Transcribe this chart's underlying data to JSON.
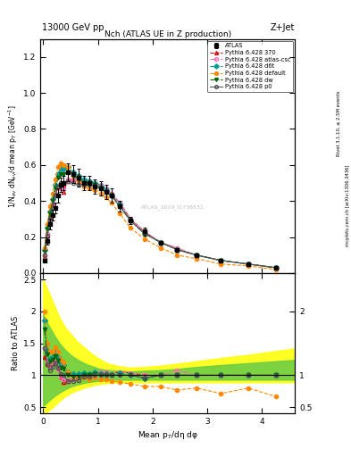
{
  "title_left": "13000 GeV pp",
  "title_right": "Z+Jet",
  "plot_title": "Nch (ATLAS UE in Z production)",
  "ylabel_main": "1/N$_{ev}$ dN$_{ev}$/d mean p$_T$ [GeV$^{-1}$]",
  "ylabel_ratio": "Ratio to ATLAS",
  "xlabel": "Mean p$_T$/dη dφ",
  "watermark": "ATLAS_2019_I1736531",
  "right_label": "Rivet 3.1.10, ≥ 2.5M events",
  "right_label2": "mcplots.cern.ch [arXiv:1306.3436]",
  "ylim_main": [
    0,
    1.3
  ],
  "ylim_ratio": [
    0.4,
    2.6
  ],
  "xlim": [
    -0.05,
    4.6
  ],
  "yticks_main": [
    0.0,
    0.2,
    0.4,
    0.6,
    0.8,
    1.0,
    1.2
  ],
  "yticks_ratio": [
    0.5,
    1.0,
    1.5,
    2.0,
    2.5
  ],
  "xticks": [
    0,
    1,
    2,
    3,
    4
  ],
  "x_atlas": [
    0.025,
    0.075,
    0.125,
    0.175,
    0.225,
    0.275,
    0.325,
    0.375,
    0.45,
    0.55,
    0.65,
    0.75,
    0.85,
    0.95,
    1.05,
    1.15,
    1.25,
    1.4,
    1.6,
    1.85,
    2.15,
    2.45,
    2.8,
    3.25,
    3.75,
    4.25
  ],
  "y_atlas": [
    0.07,
    0.18,
    0.27,
    0.32,
    0.36,
    0.43,
    0.49,
    0.5,
    0.56,
    0.55,
    0.53,
    0.5,
    0.5,
    0.48,
    0.47,
    0.45,
    0.43,
    0.37,
    0.29,
    0.23,
    0.17,
    0.13,
    0.1,
    0.07,
    0.05,
    0.03
  ],
  "err_atlas_lo": [
    0.01,
    0.02,
    0.03,
    0.03,
    0.03,
    0.04,
    0.04,
    0.04,
    0.05,
    0.05,
    0.05,
    0.04,
    0.04,
    0.04,
    0.04,
    0.04,
    0.04,
    0.03,
    0.02,
    0.02,
    0.01,
    0.01,
    0.01,
    0.01,
    0.005,
    0.005
  ],
  "err_atlas_hi": [
    0.01,
    0.02,
    0.03,
    0.03,
    0.03,
    0.04,
    0.04,
    0.04,
    0.05,
    0.05,
    0.05,
    0.04,
    0.04,
    0.04,
    0.04,
    0.04,
    0.04,
    0.03,
    0.02,
    0.02,
    0.01,
    0.01,
    0.01,
    0.01,
    0.005,
    0.005
  ],
  "series": [
    {
      "label": "Pythia 6.428 370",
      "color": "#cc0000",
      "linestyle": "--",
      "marker": "^",
      "markerfacecolor": "none",
      "x": [
        0.025,
        0.075,
        0.125,
        0.175,
        0.225,
        0.275,
        0.325,
        0.375,
        0.45,
        0.55,
        0.65,
        0.75,
        0.85,
        0.95,
        1.05,
        1.15,
        1.25,
        1.4,
        1.6,
        1.85,
        2.15,
        2.45,
        2.8,
        3.25,
        3.75,
        4.25
      ],
      "y": [
        0.09,
        0.21,
        0.31,
        0.38,
        0.44,
        0.48,
        0.48,
        0.45,
        0.51,
        0.52,
        0.51,
        0.5,
        0.5,
        0.5,
        0.49,
        0.47,
        0.44,
        0.39,
        0.3,
        0.23,
        0.17,
        0.13,
        0.1,
        0.07,
        0.05,
        0.03
      ]
    },
    {
      "label": "Pythia 6.428 atlas-csc",
      "color": "#ff69b4",
      "linestyle": "-.",
      "marker": "o",
      "markerfacecolor": "none",
      "x": [
        0.025,
        0.075,
        0.125,
        0.175,
        0.225,
        0.275,
        0.325,
        0.375,
        0.45,
        0.55,
        0.65,
        0.75,
        0.85,
        0.95,
        1.05,
        1.15,
        1.25,
        1.4,
        1.6,
        1.85,
        2.15,
        2.45,
        2.8,
        3.25,
        3.75,
        4.25
      ],
      "y": [
        0.1,
        0.22,
        0.31,
        0.38,
        0.44,
        0.47,
        0.47,
        0.47,
        0.52,
        0.52,
        0.51,
        0.51,
        0.51,
        0.5,
        0.49,
        0.47,
        0.44,
        0.39,
        0.3,
        0.23,
        0.17,
        0.14,
        0.1,
        0.07,
        0.05,
        0.03
      ]
    },
    {
      "label": "Pythia 6.428 d6t",
      "color": "#009999",
      "linestyle": "--",
      "marker": "D",
      "markerfacecolor": "#009999",
      "x": [
        0.025,
        0.075,
        0.125,
        0.175,
        0.225,
        0.275,
        0.325,
        0.375,
        0.45,
        0.55,
        0.65,
        0.75,
        0.85,
        0.95,
        1.05,
        1.15,
        1.25,
        1.4,
        1.6,
        1.85,
        2.15,
        2.45,
        2.8,
        3.25,
        3.75,
        4.25
      ],
      "y": [
        0.13,
        0.25,
        0.34,
        0.41,
        0.49,
        0.55,
        0.58,
        0.58,
        0.59,
        0.56,
        0.54,
        0.52,
        0.51,
        0.5,
        0.48,
        0.46,
        0.43,
        0.38,
        0.29,
        0.22,
        0.17,
        0.13,
        0.1,
        0.07,
        0.05,
        0.03
      ]
    },
    {
      "label": "Pythia 6.428 default",
      "color": "#ff8800",
      "linestyle": "--",
      "marker": "o",
      "markerfacecolor": "#ff8800",
      "x": [
        0.025,
        0.075,
        0.125,
        0.175,
        0.225,
        0.275,
        0.325,
        0.375,
        0.45,
        0.55,
        0.65,
        0.75,
        0.85,
        0.95,
        1.05,
        1.15,
        1.25,
        1.4,
        1.6,
        1.85,
        2.15,
        2.45,
        2.8,
        3.25,
        3.75,
        4.25
      ],
      "y": [
        0.14,
        0.27,
        0.37,
        0.44,
        0.52,
        0.59,
        0.61,
        0.6,
        0.59,
        0.54,
        0.51,
        0.48,
        0.47,
        0.46,
        0.44,
        0.42,
        0.39,
        0.33,
        0.25,
        0.19,
        0.14,
        0.1,
        0.08,
        0.05,
        0.04,
        0.02
      ]
    },
    {
      "label": "Pythia 6.428 dw",
      "color": "#006600",
      "linestyle": "-.",
      "marker": "v",
      "markerfacecolor": "#006600",
      "x": [
        0.025,
        0.075,
        0.125,
        0.175,
        0.225,
        0.275,
        0.325,
        0.375,
        0.45,
        0.55,
        0.65,
        0.75,
        0.85,
        0.95,
        1.05,
        1.15,
        1.25,
        1.4,
        1.6,
        1.85,
        2.15,
        2.45,
        2.8,
        3.25,
        3.75,
        4.25
      ],
      "y": [
        0.12,
        0.24,
        0.33,
        0.4,
        0.47,
        0.53,
        0.55,
        0.55,
        0.56,
        0.54,
        0.52,
        0.5,
        0.5,
        0.49,
        0.47,
        0.45,
        0.43,
        0.37,
        0.29,
        0.22,
        0.17,
        0.13,
        0.1,
        0.07,
        0.05,
        0.03
      ]
    },
    {
      "label": "Pythia 6.428 p0",
      "color": "#555555",
      "linestyle": "-",
      "marker": "o",
      "markerfacecolor": "none",
      "x": [
        0.025,
        0.075,
        0.125,
        0.175,
        0.225,
        0.275,
        0.325,
        0.375,
        0.45,
        0.55,
        0.65,
        0.75,
        0.85,
        0.95,
        1.05,
        1.15,
        1.25,
        1.4,
        1.6,
        1.85,
        2.15,
        2.45,
        2.8,
        3.25,
        3.75,
        4.25
      ],
      "y": [
        0.1,
        0.21,
        0.29,
        0.36,
        0.43,
        0.48,
        0.5,
        0.5,
        0.51,
        0.5,
        0.49,
        0.49,
        0.49,
        0.48,
        0.47,
        0.45,
        0.43,
        0.37,
        0.29,
        0.22,
        0.17,
        0.13,
        0.1,
        0.07,
        0.05,
        0.03
      ]
    }
  ],
  "band_x": [
    0.0,
    0.1,
    0.2,
    0.3,
    0.4,
    0.5,
    0.6,
    0.7,
    0.8,
    0.9,
    1.0,
    1.1,
    1.2,
    1.4,
    1.6,
    1.85,
    2.15,
    2.45,
    2.8,
    3.25,
    3.75,
    4.25,
    4.6
  ],
  "yellow_lo": [
    0.35,
    0.45,
    0.52,
    0.6,
    0.67,
    0.72,
    0.76,
    0.79,
    0.82,
    0.84,
    0.86,
    0.87,
    0.88,
    0.89,
    0.89,
    0.89,
    0.89,
    0.89,
    0.89,
    0.89,
    0.89,
    0.89,
    0.89
  ],
  "yellow_hi": [
    2.5,
    2.3,
    2.1,
    1.9,
    1.75,
    1.65,
    1.55,
    1.47,
    1.4,
    1.33,
    1.27,
    1.22,
    1.18,
    1.14,
    1.12,
    1.13,
    1.15,
    1.18,
    1.22,
    1.27,
    1.32,
    1.38,
    1.42
  ],
  "green_lo": [
    0.52,
    0.6,
    0.67,
    0.73,
    0.78,
    0.82,
    0.85,
    0.87,
    0.89,
    0.9,
    0.91,
    0.92,
    0.93,
    0.93,
    0.93,
    0.93,
    0.93,
    0.93,
    0.93,
    0.93,
    0.93,
    0.93,
    0.93
  ],
  "green_hi": [
    1.95,
    1.78,
    1.63,
    1.5,
    1.4,
    1.32,
    1.26,
    1.21,
    1.17,
    1.14,
    1.11,
    1.09,
    1.08,
    1.07,
    1.06,
    1.07,
    1.08,
    1.1,
    1.13,
    1.16,
    1.19,
    1.22,
    1.24
  ]
}
